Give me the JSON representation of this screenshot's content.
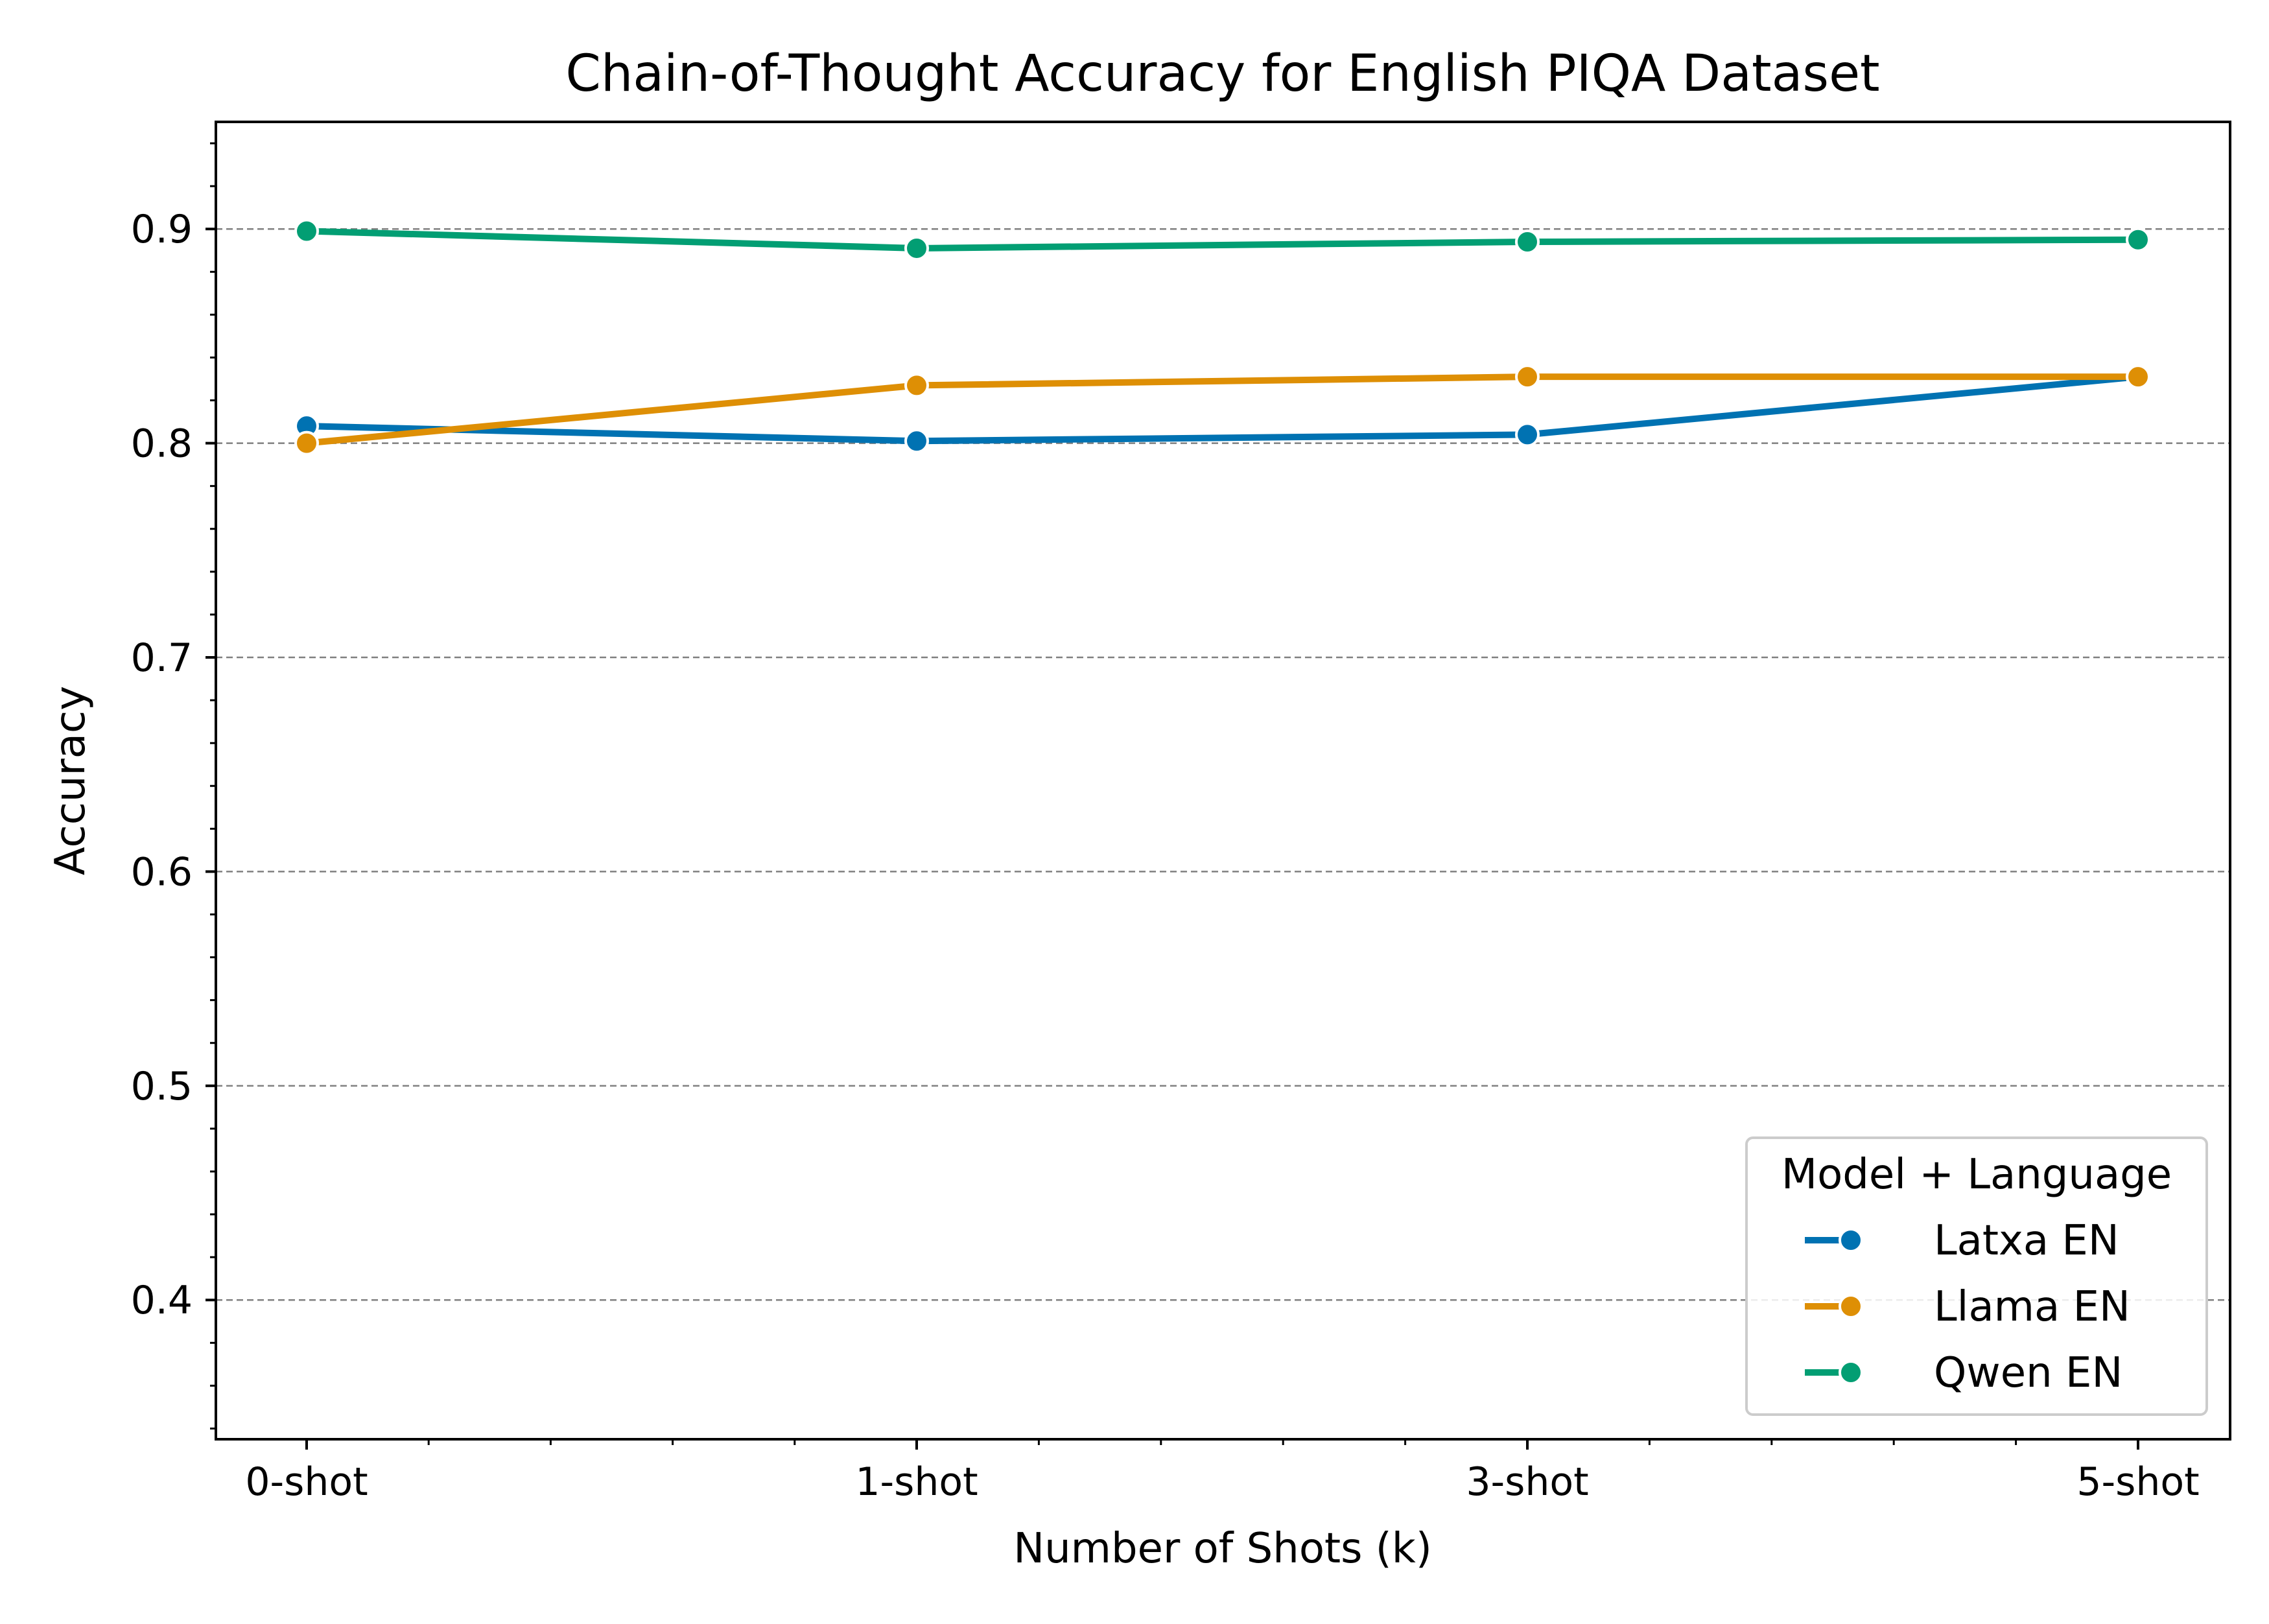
{
  "chart_data": {
    "type": "line",
    "title": "Chain-of-Thought Accuracy for English PIQA Dataset",
    "xlabel": "Number of Shots (k)",
    "ylabel": "Accuracy",
    "categories": [
      "0-shot",
      "1-shot",
      "3-shot",
      "5-shot"
    ],
    "ylim": [
      0.335,
      0.95
    ],
    "yticks": [
      0.4,
      0.5,
      0.6,
      0.7,
      0.8,
      0.9
    ],
    "ytick_labels": [
      "0.4",
      "0.5",
      "0.6",
      "0.7",
      "0.8",
      "0.9"
    ],
    "grid": "horizontal dashed",
    "legend": {
      "title": "Model + Language",
      "placement": "lower-right"
    },
    "series": [
      {
        "name": "Latxa EN",
        "color": "#0072b2",
        "values": [
          0.808,
          0.801,
          0.804,
          0.831
        ]
      },
      {
        "name": "Llama EN",
        "color": "#de8f05",
        "values": [
          0.8,
          0.827,
          0.831,
          0.831
        ]
      },
      {
        "name": "Qwen EN",
        "color": "#029e73",
        "values": [
          0.899,
          0.891,
          0.894,
          0.895
        ]
      }
    ]
  }
}
